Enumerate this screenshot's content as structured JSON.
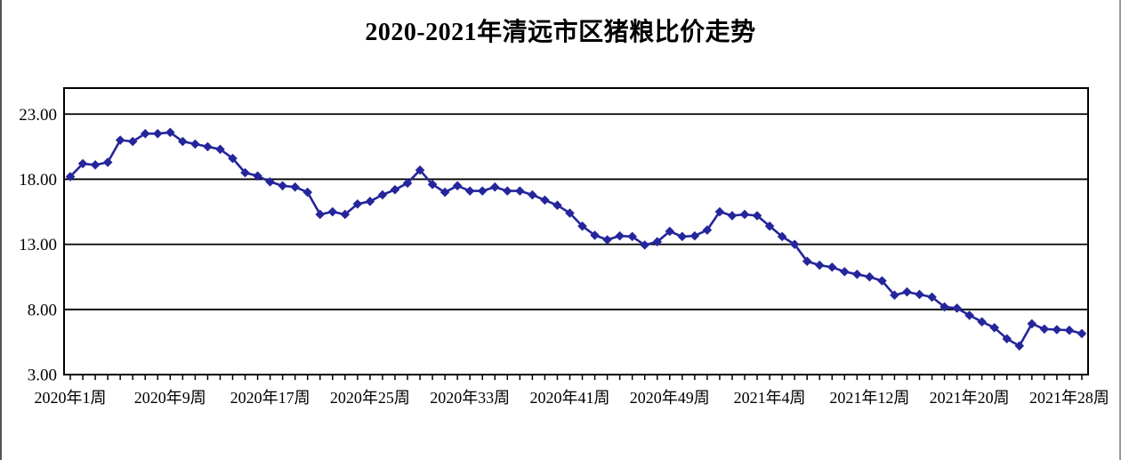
{
  "chart_data": {
    "type": "line",
    "title": "2020-2021年清远市区猪粮比价走势",
    "xlabel": "",
    "ylabel": "",
    "ylim": [
      3,
      25
    ],
    "yticks": [
      3,
      8,
      13,
      18,
      23
    ],
    "ytick_labels": [
      "3.00",
      "8.00",
      "13.00",
      "18.00",
      "23.00"
    ],
    "grid": "horizontal",
    "legend": "none",
    "marker": "diamond",
    "line_color": "#25259C",
    "axis_color": "#000000",
    "x_axis_note": "weekly categories: 2020 week 1-53 then 2021 week 1-29 (82 points)",
    "x_categories_counts": {
      "2020_weeks": 53,
      "2021_weeks": 29
    },
    "x_tick_indices": [
      0,
      8,
      16,
      24,
      32,
      40,
      48,
      56,
      64,
      72,
      80
    ],
    "x_tick_labels": [
      "2020年1周",
      "2020年9周",
      "2020年17周",
      "2020年25周",
      "2020年33周",
      "2020年41周",
      "2020年49周",
      "2021年4周",
      "2021年12周",
      "2021年20周",
      "2021年28周"
    ],
    "series": [
      {
        "name": "猪粮比价",
        "values": [
          18.2,
          19.2,
          19.1,
          19.3,
          21.0,
          20.9,
          21.5,
          21.5,
          21.6,
          20.9,
          20.7,
          20.5,
          20.3,
          19.6,
          18.5,
          18.25,
          17.8,
          17.5,
          17.4,
          17.0,
          15.3,
          15.5,
          15.3,
          16.1,
          16.3,
          16.8,
          17.2,
          17.7,
          18.7,
          17.6,
          17.0,
          17.5,
          17.1,
          17.1,
          17.4,
          17.1,
          17.1,
          16.8,
          16.4,
          16.0,
          15.4,
          14.4,
          13.7,
          13.35,
          13.65,
          13.6,
          12.95,
          13.2,
          14.0,
          13.6,
          13.65,
          14.1,
          15.5,
          15.2,
          15.3,
          15.2,
          14.4,
          13.6,
          13.0,
          11.7,
          11.4,
          11.25,
          10.9,
          10.7,
          10.5,
          10.2,
          9.1,
          9.35,
          9.15,
          8.95,
          8.2,
          8.1,
          7.55,
          7.05,
          6.6,
          5.75,
          5.2,
          6.9,
          6.5,
          6.45,
          6.4,
          6.15
        ]
      }
    ]
  }
}
